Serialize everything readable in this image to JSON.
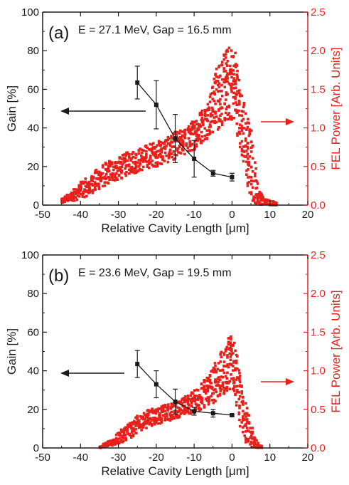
{
  "chart_data": [
    {
      "type": "scatter",
      "panel_label": "(a)",
      "title": "E = 27.1 MeV, Gap = 16.5 mm",
      "xlabel": "Relative Cavity Length [μm]",
      "ylabel": "Gain [%]",
      "ylabel_right": "FEL Power [Arb. Units]",
      "xlim": [
        -50,
        20
      ],
      "ylim": [
        0,
        100
      ],
      "ylim_right": [
        0,
        2.5
      ],
      "x_ticks": [
        "-50",
        "-40",
        "-30",
        "-20",
        "-10",
        "0",
        "10",
        "20"
      ],
      "y_ticks": [
        "0",
        "20",
        "40",
        "60",
        "80",
        "100"
      ],
      "y_ticks_right": [
        "0.0",
        "0.5",
        "1.0",
        "1.5",
        "2.0",
        "2.5"
      ],
      "colors": {
        "gain": "#1a1a1a",
        "power": "#e8201c"
      },
      "series": [
        {
          "name": "Gain",
          "axis": "left",
          "x": [
            -25,
            -20,
            -15,
            -10,
            -5,
            0
          ],
          "y": [
            63.5,
            52.0,
            34.5,
            24.0,
            16.5,
            14.5
          ],
          "err": [
            8.5,
            12.5,
            12.5,
            9.5,
            1.5,
            2.0
          ]
        },
        {
          "name": "FEL Power",
          "axis": "right",
          "envelope": [
            [
              -45,
              0.02,
              0.08
            ],
            [
              -42,
              0.05,
              0.2
            ],
            [
              -40,
              0.08,
              0.3
            ],
            [
              -37,
              0.15,
              0.4
            ],
            [
              -35,
              0.2,
              0.5
            ],
            [
              -32,
              0.3,
              0.6
            ],
            [
              -30,
              0.32,
              0.62
            ],
            [
              -27,
              0.4,
              0.7
            ],
            [
              -25,
              0.42,
              0.72
            ],
            [
              -22,
              0.48,
              0.8
            ],
            [
              -20,
              0.5,
              0.82
            ],
            [
              -17,
              0.55,
              0.88
            ],
            [
              -15,
              0.6,
              0.95
            ],
            [
              -12,
              0.65,
              1.0
            ],
            [
              -10,
              0.72,
              1.12
            ],
            [
              -8,
              0.8,
              1.25
            ],
            [
              -6,
              0.88,
              1.4
            ],
            [
              -4,
              0.95,
              1.8
            ],
            [
              -2,
              1.05,
              2.0
            ],
            [
              0,
              1.1,
              2.1
            ],
            [
              1,
              1.0,
              2.0
            ],
            [
              2,
              0.8,
              1.6
            ],
            [
              3,
              0.5,
              1.4
            ],
            [
              4,
              0.2,
              1.2
            ],
            [
              5,
              0.05,
              1.0
            ],
            [
              6,
              0.02,
              0.6
            ],
            [
              7,
              0.01,
              0.2
            ],
            [
              9,
              0.0,
              0.08
            ],
            [
              11,
              0.0,
              0.05
            ],
            [
              12,
              0.0,
              0.02
            ]
          ]
        }
      ]
    },
    {
      "type": "scatter",
      "panel_label": "(b)",
      "title": "E = 23.6 MeV, Gap = 19.5 mm",
      "xlabel": "Relative Cavity Length [μm]",
      "ylabel": "Gain [%]",
      "ylabel_right": "FEL Power [Arb. Units]",
      "xlim": [
        -50,
        20
      ],
      "ylim": [
        0,
        100
      ],
      "ylim_right": [
        0,
        2.5
      ],
      "x_ticks": [
        "-50",
        "-40",
        "-30",
        "-20",
        "-10",
        "0",
        "10",
        "20"
      ],
      "y_ticks": [
        "0",
        "20",
        "40",
        "60",
        "80",
        "100"
      ],
      "y_ticks_right": [
        "0.0",
        "0.5",
        "1.0",
        "1.5",
        "2.0",
        "2.5"
      ],
      "colors": {
        "gain": "#1a1a1a",
        "power": "#e8201c"
      },
      "series": [
        {
          "name": "Gain",
          "axis": "left",
          "x": [
            -25,
            -20,
            -15,
            -10,
            -5,
            0
          ],
          "y": [
            43.5,
            33.0,
            24.0,
            19.0,
            18.0,
            17.0
          ],
          "err": [
            7.0,
            7.0,
            6.5,
            2.0,
            2.0,
            0.5
          ]
        },
        {
          "name": "FEL Power",
          "axis": "right",
          "envelope": [
            [
              -35,
              0.0,
              0.02
            ],
            [
              -32,
              0.02,
              0.1
            ],
            [
              -30,
              0.05,
              0.2
            ],
            [
              -28,
              0.1,
              0.3
            ],
            [
              -26,
              0.15,
              0.38
            ],
            [
              -24,
              0.22,
              0.45
            ],
            [
              -22,
              0.28,
              0.5
            ],
            [
              -20,
              0.3,
              0.52
            ],
            [
              -18,
              0.33,
              0.55
            ],
            [
              -16,
              0.36,
              0.58
            ],
            [
              -14,
              0.4,
              0.62
            ],
            [
              -12,
              0.43,
              0.68
            ],
            [
              -10,
              0.45,
              0.75
            ],
            [
              -8,
              0.5,
              0.85
            ],
            [
              -6,
              0.55,
              1.0
            ],
            [
              -4,
              0.6,
              1.15
            ],
            [
              -2,
              0.7,
              1.3
            ],
            [
              -1,
              0.75,
              1.5
            ],
            [
              0,
              0.8,
              1.55
            ],
            [
              1,
              0.6,
              1.4
            ],
            [
              2,
              0.3,
              1.0
            ],
            [
              3,
              0.15,
              0.8
            ],
            [
              4,
              0.05,
              0.55
            ],
            [
              5,
              0.02,
              0.3
            ],
            [
              6,
              0.0,
              0.15
            ],
            [
              7,
              0.0,
              0.05
            ],
            [
              8,
              0.0,
              0.02
            ]
          ]
        }
      ]
    }
  ]
}
